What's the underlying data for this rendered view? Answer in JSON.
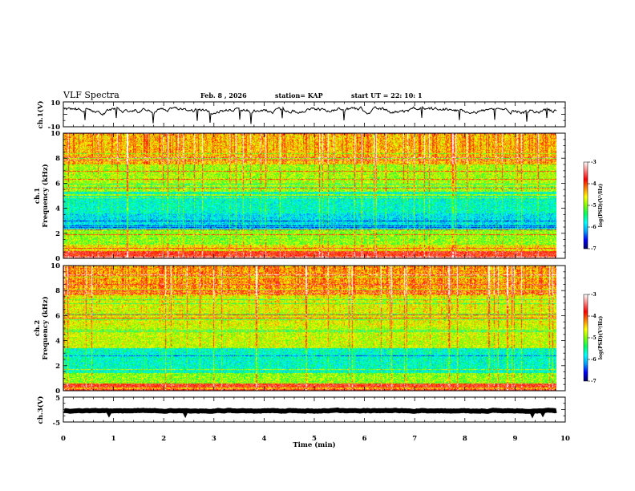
{
  "header": {
    "title": "VLF Spectra",
    "date": "Feb. 8 , 2026",
    "station": "station= KAP",
    "start_ut": "start  UT =  22: 10: 1"
  },
  "chart_data": {
    "type": "heatmap",
    "xlabel": "Time  (min)",
    "xlim": [
      0,
      10
    ],
    "x_ticks": [
      "0",
      "1",
      "2",
      "3",
      "4",
      "5",
      "6",
      "7",
      "8",
      "9",
      "10"
    ],
    "data_end_min": 9.83,
    "panels": [
      {
        "id": "ch1_waveform",
        "type": "line",
        "ylabel": "ch.1(V)",
        "ylim": [
          -10,
          10
        ],
        "y_ticks": [
          "10",
          "-10"
        ],
        "mean_level": 3.2,
        "fluctuation": 4.5
      },
      {
        "id": "ch1_spectrogram",
        "type": "heatmap",
        "ylabel": "ch.1\nFrequency  (kHz)",
        "ylim": [
          0,
          10
        ],
        "y_ticks": [
          "0",
          "2",
          "4",
          "6",
          "8",
          "10"
        ],
        "zlim": [
          -7,
          -3
        ],
        "band_profile": [
          {
            "f0": 0.0,
            "f1": 0.6,
            "level": -3.8
          },
          {
            "f0": 0.6,
            "f1": 1.1,
            "level": -4.6
          },
          {
            "f0": 1.1,
            "f1": 2.3,
            "level": -5.0
          },
          {
            "f0": 2.3,
            "f1": 3.6,
            "level": -5.9
          },
          {
            "f0": 3.6,
            "f1": 5.3,
            "level": -5.7
          },
          {
            "f0": 5.3,
            "f1": 7.5,
            "level": -4.9
          },
          {
            "f0": 7.5,
            "f1": 10.0,
            "level": -4.4
          }
        ]
      },
      {
        "id": "ch2_spectrogram",
        "type": "heatmap",
        "ylabel": "ch.2\nFrequency  (kHz)",
        "ylim": [
          0,
          10
        ],
        "y_ticks": [
          "0",
          "2",
          "4",
          "6",
          "8",
          "10"
        ],
        "zlim": [
          -7,
          -3
        ],
        "band_profile": [
          {
            "f0": 0.0,
            "f1": 0.6,
            "level": -3.8
          },
          {
            "f0": 0.6,
            "f1": 1.4,
            "level": -5.0
          },
          {
            "f0": 1.4,
            "f1": 3.4,
            "level": -5.7
          },
          {
            "f0": 3.4,
            "f1": 5.2,
            "level": -4.8
          },
          {
            "f0": 5.2,
            "f1": 7.6,
            "level": -4.7
          },
          {
            "f0": 7.6,
            "f1": 10.0,
            "level": -4.3
          }
        ]
      },
      {
        "id": "ch3_waveform",
        "type": "line",
        "ylabel": "ch.3(V)",
        "ylim": [
          -5,
          5
        ],
        "y_ticks": [
          "5",
          "-5"
        ],
        "mean_level": -0.5,
        "fluctuation": 0.35
      }
    ],
    "colorbar": {
      "label": "log(PSD)(V²/Hz)",
      "range": [
        -7,
        -3
      ],
      "ticks": [
        "-3",
        "-4",
        "-5",
        "-6",
        "-7"
      ],
      "colors": [
        "#000060",
        "#0000ff",
        "#00a0ff",
        "#00ffff",
        "#00ff60",
        "#80ff00",
        "#ffff00",
        "#ff8000",
        "#ff0000",
        "#ff8080",
        "#ffffff"
      ]
    }
  }
}
